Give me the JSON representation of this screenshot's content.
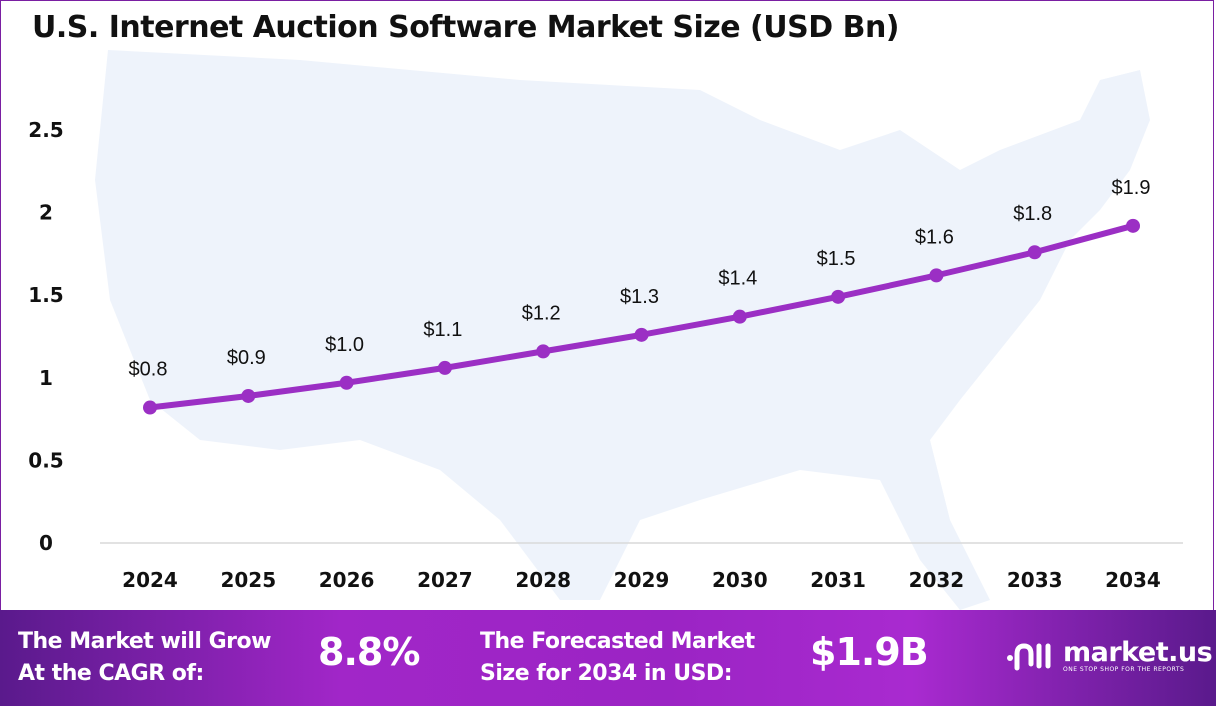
{
  "chart_data": {
    "type": "line",
    "title": "U.S. Internet Auction Software Market Size (USD Bn)",
    "categories": [
      "2024",
      "2025",
      "2026",
      "2027",
      "2028",
      "2029",
      "2030",
      "2031",
      "2032",
      "2033",
      "2034"
    ],
    "series": [
      {
        "values": [
          0.82,
          0.89,
          0.97,
          1.06,
          1.16,
          1.26,
          1.37,
          1.49,
          1.62,
          1.76,
          1.92
        ],
        "labels": [
          "$0.8",
          "$0.9",
          "$1.0",
          "$1.1",
          "$1.2",
          "$1.3",
          "$1.4",
          "$1.5",
          "$1.6",
          "$1.8",
          "$1.9"
        ],
        "color": "#9b2fc4"
      }
    ],
    "yticks": [
      "0",
      "0.5",
      "1",
      "1.5",
      "2",
      "2.5"
    ],
    "ylim": [
      0,
      2.5
    ],
    "grid": false,
    "xlabel": "",
    "ylabel": ""
  },
  "banner": {
    "cagr_text_1": "The Market will Grow",
    "cagr_text_2": "At the CAGR of:",
    "cagr_value": "8.8%",
    "forecast_text_1": "The Forecasted Market",
    "forecast_text_2": "Size for 2034 in USD:",
    "forecast_value": "$1.9B",
    "logo_name": "market.us",
    "logo_tagline": "ONE STOP SHOP FOR THE REPORTS"
  },
  "colors": {
    "line": "#9b2fc4",
    "map": "#eef3fb",
    "banner": "#a126c8"
  }
}
